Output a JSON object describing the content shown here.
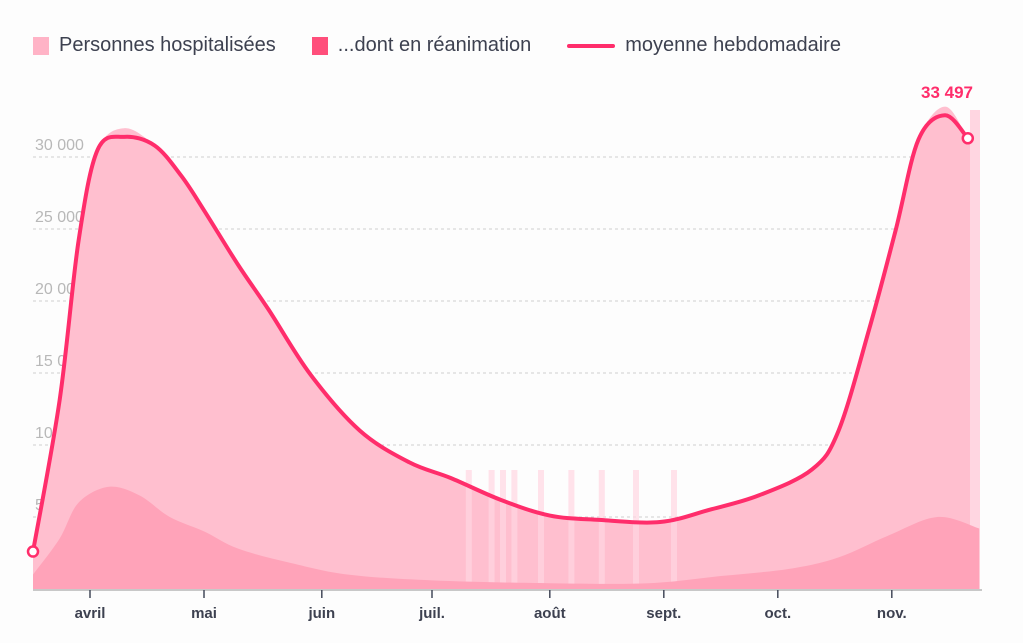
{
  "chart_data": {
    "type": "area",
    "title": "",
    "legend": [
      {
        "label": "Personnes hospitalisées",
        "color": "#ffb3c6"
      },
      {
        "label": "...dont en réanimation",
        "color": "#ff4f7b"
      },
      {
        "label": "moyenne hebdomadaire",
        "color": "#ff2d6b"
      }
    ],
    "legend_position": "top-left",
    "x_unit": "days since 17 March",
    "xlim": [
      0,
      249
    ],
    "ylim": [
      0,
      35000
    ],
    "yticks": [
      5000,
      10000,
      15000,
      20000,
      25000,
      30000
    ],
    "ytick_labels": [
      "5000",
      "10 000",
      "15 000",
      "20 000",
      "25 000",
      "30 000"
    ],
    "xticks": [
      {
        "day": 15,
        "label": "avril"
      },
      {
        "day": 45,
        "label": "mai"
      },
      {
        "day": 76,
        "label": "juin"
      },
      {
        "day": 105,
        "label": "juil."
      },
      {
        "day": 136,
        "label": "août"
      },
      {
        "day": 166,
        "label": "sept."
      },
      {
        "day": 196,
        "label": "oct."
      },
      {
        "day": 226,
        "label": "nov."
      }
    ],
    "annotation": "33 497",
    "series": [
      {
        "name": "Personnes hospitalisées",
        "points": [
          [
            0,
            2600
          ],
          [
            7,
            13000
          ],
          [
            12,
            24500
          ],
          [
            17,
            30500
          ],
          [
            24,
            32000
          ],
          [
            32,
            30800
          ],
          [
            39,
            28700
          ],
          [
            45,
            26300
          ],
          [
            54,
            22500
          ],
          [
            62,
            19400
          ],
          [
            73,
            14900
          ],
          [
            86,
            11000
          ],
          [
            99,
            8800
          ],
          [
            110,
            7700
          ],
          [
            123,
            6200
          ],
          [
            136,
            5100
          ],
          [
            149,
            4800
          ],
          [
            165,
            4650
          ],
          [
            178,
            5500
          ],
          [
            191,
            6500
          ],
          [
            205,
            8300
          ],
          [
            212,
            11000
          ],
          [
            220,
            18000
          ],
          [
            227,
            24900
          ],
          [
            233,
            31200
          ],
          [
            240,
            33497
          ],
          [
            246,
            31300
          ],
          [
            249,
            30000
          ]
        ]
      },
      {
        "name": "...dont en réanimation",
        "points": [
          [
            0,
            1000
          ],
          [
            7,
            3500
          ],
          [
            12,
            6000
          ],
          [
            20,
            7100
          ],
          [
            28,
            6500
          ],
          [
            36,
            5000
          ],
          [
            45,
            4000
          ],
          [
            54,
            2800
          ],
          [
            68,
            1800
          ],
          [
            83,
            1000
          ],
          [
            105,
            600
          ],
          [
            136,
            400
          ],
          [
            162,
            400
          ],
          [
            181,
            900
          ],
          [
            199,
            1400
          ],
          [
            212,
            2200
          ],
          [
            225,
            3700
          ],
          [
            238,
            5000
          ],
          [
            249,
            4200
          ]
        ]
      },
      {
        "name": "moyenne hebdomadaire",
        "points": [
          [
            0,
            2600
          ],
          [
            7,
            13100
          ],
          [
            12,
            24200
          ],
          [
            17,
            30500
          ],
          [
            24,
            31400
          ],
          [
            32,
            30800
          ],
          [
            39,
            28700
          ],
          [
            45,
            26300
          ],
          [
            54,
            22500
          ],
          [
            62,
            19400
          ],
          [
            73,
            14900
          ],
          [
            86,
            11000
          ],
          [
            99,
            8800
          ],
          [
            110,
            7700
          ],
          [
            123,
            6200
          ],
          [
            136,
            5100
          ],
          [
            149,
            4800
          ],
          [
            165,
            4650
          ],
          [
            178,
            5500
          ],
          [
            191,
            6500
          ],
          [
            205,
            8300
          ],
          [
            212,
            11000
          ],
          [
            220,
            18000
          ],
          [
            227,
            24900
          ],
          [
            233,
            31200
          ],
          [
            240,
            32900
          ],
          [
            246,
            31300
          ]
        ]
      }
    ]
  }
}
